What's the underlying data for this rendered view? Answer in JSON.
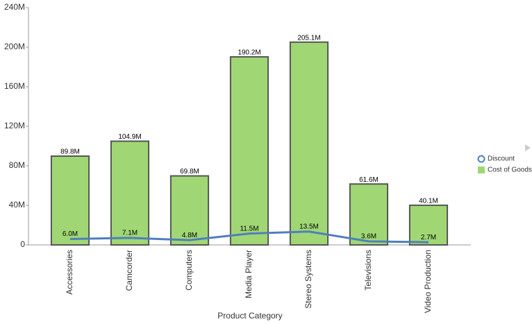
{
  "chart_data": {
    "type": "combo",
    "x_label": "Product Category",
    "categories": [
      "Accessories",
      "Camcorder",
      "Computers",
      "Media Player",
      "Stereo Systems",
      "Televisions",
      "Video Production"
    ],
    "series": [
      {
        "name": "Discount",
        "type": "line",
        "color": "#4f7fbd",
        "values": [
          6000000,
          7100000,
          4800000,
          11500000,
          13500000,
          3600000,
          2700000
        ],
        "value_labels": [
          "6.0M",
          "7.1M",
          "4.8M",
          "11.5M",
          "13.5M",
          "3.6M",
          "2.7M"
        ]
      },
      {
        "name": "Cost of Goods",
        "type": "bar",
        "color": "#a0d774",
        "values": [
          89800000,
          104900000,
          69800000,
          190200000,
          205100000,
          61600000,
          40100000
        ],
        "value_labels": [
          "89.8M",
          "104.9M",
          "69.8M",
          "190.2M",
          "205.1M",
          "61.6M",
          "40.1M"
        ]
      }
    ],
    "ylim": [
      0,
      240000000
    ],
    "yticks": [
      0,
      {
        "value": 40000000,
        "label": "40M"
      },
      {
        "value": 80000000,
        "label": "80M"
      },
      {
        "value": 120000000,
        "label": "120M"
      },
      {
        "value": 160000000,
        "label": "160M"
      },
      {
        "value": 200000000,
        "label": "200M"
      },
      {
        "value": 240000000,
        "label": "240M"
      }
    ],
    "grid": false,
    "legend": "right"
  }
}
